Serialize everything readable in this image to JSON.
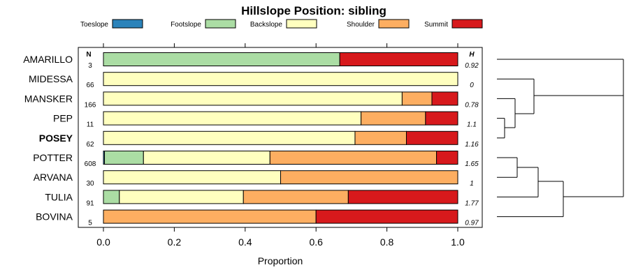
{
  "chart_data": {
    "type": "bar",
    "stacked": true,
    "orientation": "horizontal",
    "title": "Hillslope Position: sibling",
    "xlabel": "Proportion",
    "xlim": [
      0,
      1
    ],
    "xticks": [
      "0.0",
      "0.2",
      "0.4",
      "0.6",
      "0.8",
      "1.0"
    ],
    "n_header": "N",
    "h_header": "H",
    "legend_position": "top",
    "categories": [
      "AMARILLO",
      "MIDESSA",
      "MANSKER",
      "PEP",
      "POSEY",
      "POTTER",
      "ARVANA",
      "TULIA",
      "BOVINA"
    ],
    "highlighted_category": "POSEY",
    "n": [
      "3",
      "66",
      "166",
      "11",
      "62",
      "608",
      "30",
      "91",
      "5"
    ],
    "h": [
      "0.92",
      "0",
      "0.78",
      "1.1",
      "1.16",
      "1.65",
      "1",
      "1.77",
      "0.97"
    ],
    "series": [
      {
        "name": "Toeslope",
        "color": "#2b83ba",
        "values": [
          0,
          0,
          0,
          0,
          0,
          0.003,
          0,
          0,
          0
        ]
      },
      {
        "name": "Footslope",
        "color": "#abdda4",
        "values": [
          0.667,
          0,
          0,
          0,
          0,
          0.11,
          0,
          0.045,
          0
        ]
      },
      {
        "name": "Backslope",
        "color": "#ffffbf",
        "values": [
          0,
          1.0,
          0.843,
          0.727,
          0.71,
          0.357,
          0.5,
          0.35,
          0
        ]
      },
      {
        "name": "Shoulder",
        "color": "#fdae61",
        "values": [
          0,
          0,
          0.084,
          0.182,
          0.145,
          0.47,
          0.5,
          0.296,
          0.6
        ]
      },
      {
        "name": "Summit",
        "color": "#d7191c",
        "values": [
          0.333,
          0,
          0.073,
          0.091,
          0.145,
          0.06,
          0,
          0.309,
          0.4
        ]
      }
    ],
    "dendrogram": true
  }
}
